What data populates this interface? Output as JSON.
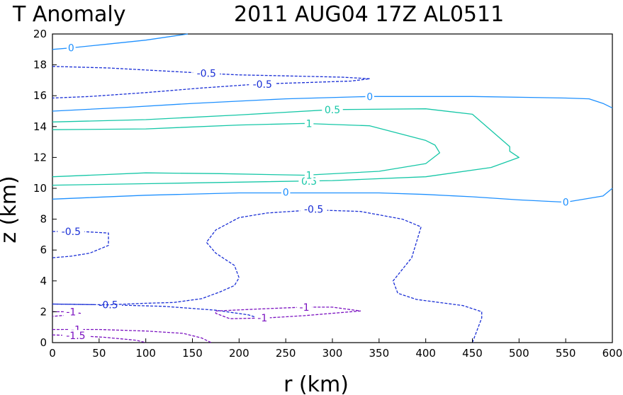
{
  "chart_data": {
    "type": "contour",
    "title_left": "T Anomaly",
    "title_right": "2011 AUG04 17Z   AL0511",
    "xlabel": "r (km)",
    "ylabel": "z (km)",
    "xlim": [
      0,
      600
    ],
    "ylim": [
      0,
      20
    ],
    "xticks": [
      "0",
      "50",
      "100",
      "150",
      "200",
      "250",
      "300",
      "350",
      "400",
      "450",
      "500",
      "550",
      "600"
    ],
    "yticks": [
      "0",
      "2",
      "4",
      "6",
      "8",
      "10",
      "12",
      "14",
      "16",
      "18",
      "20"
    ],
    "colors": {
      "zero": "#1e90ff",
      "positive": "#16c7a7",
      "negative": "#1a2fd6",
      "strong_negative": "#7a10c0"
    },
    "contours": [
      {
        "id": "zero-top",
        "level": "0",
        "style": "zero",
        "dashed": false,
        "points": [
          [
            0,
            19
          ],
          [
            20,
            19.1
          ],
          [
            60,
            19.35
          ],
          [
            100,
            19.6
          ],
          [
            145,
            20
          ]
        ],
        "labels": [
          {
            "text": "0",
            "at": [
              20,
              19.1
            ]
          }
        ]
      },
      {
        "id": "neg05-top",
        "level": "-0.5",
        "style": "negative",
        "dashed": true,
        "points": [
          [
            0,
            17.9
          ],
          [
            60,
            17.8
          ],
          [
            120,
            17.6
          ],
          [
            165,
            17.45
          ],
          [
            200,
            17.35
          ],
          [
            240,
            17.3
          ],
          [
            310,
            17.2
          ],
          [
            340,
            17.1
          ],
          [
            320,
            16.95
          ],
          [
            270,
            16.85
          ],
          [
            220,
            16.75
          ],
          [
            160,
            16.5
          ],
          [
            100,
            16.2
          ],
          [
            40,
            15.95
          ],
          [
            0,
            15.85
          ]
        ],
        "labels": [
          {
            "text": "-0.5",
            "at": [
              165,
              17.45
            ]
          },
          {
            "text": "-0.5",
            "at": [
              225,
              16.75
            ]
          }
        ]
      },
      {
        "id": "zero-upper",
        "level": "0",
        "style": "zero",
        "dashed": false,
        "points": [
          [
            0,
            15
          ],
          [
            80,
            15.25
          ],
          [
            150,
            15.5
          ],
          [
            250,
            15.8
          ],
          [
            340,
            15.95
          ],
          [
            450,
            15.95
          ],
          [
            550,
            15.85
          ],
          [
            575,
            15.8
          ],
          [
            590,
            15.5
          ],
          [
            600,
            15.2
          ]
        ],
        "labels": [
          {
            "text": "0",
            "at": [
              340,
              15.95
            ]
          }
        ]
      },
      {
        "id": "pos05-upper",
        "level": "0.5",
        "style": "positive",
        "dashed": false,
        "points": [
          [
            0,
            14.3
          ],
          [
            100,
            14.45
          ],
          [
            200,
            14.75
          ],
          [
            300,
            15.1
          ],
          [
            400,
            15.15
          ],
          [
            450,
            14.8
          ],
          [
            490,
            12.7
          ],
          [
            490,
            12.4
          ],
          [
            500,
            12
          ],
          [
            470,
            11.35
          ],
          [
            400,
            10.75
          ],
          [
            300,
            10.5
          ],
          [
            200,
            10.4
          ],
          [
            100,
            10.3
          ],
          [
            0,
            10.2
          ]
        ],
        "labels": [
          {
            "text": "0.5",
            "at": [
              300,
              15.1
            ]
          },
          {
            "text": "0.5",
            "at": [
              275,
              10.45
            ]
          }
        ]
      },
      {
        "id": "pos1-upper",
        "level": "1",
        "style": "positive",
        "dashed": false,
        "points": [
          [
            0,
            13.8
          ],
          [
            100,
            13.85
          ],
          [
            200,
            14.1
          ],
          [
            270,
            14.2
          ],
          [
            340,
            14.05
          ],
          [
            400,
            13.1
          ],
          [
            410,
            12.8
          ],
          [
            415,
            12.3
          ],
          [
            400,
            11.6
          ],
          [
            350,
            11.1
          ],
          [
            270,
            10.85
          ],
          [
            180,
            10.95
          ],
          [
            100,
            11
          ],
          [
            0,
            10.75
          ]
        ],
        "labels": [
          {
            "text": "1",
            "at": [
              275,
              14.2
            ]
          },
          {
            "text": "1",
            "at": [
              275,
              10.85
            ]
          }
        ]
      },
      {
        "id": "zero-mid",
        "level": "0",
        "style": "zero",
        "dashed": false,
        "points": [
          [
            0,
            9.3
          ],
          [
            100,
            9.55
          ],
          [
            200,
            9.7
          ],
          [
            300,
            9.7
          ],
          [
            350,
            9.7
          ],
          [
            400,
            9.6
          ],
          [
            450,
            9.45
          ],
          [
            500,
            9.25
          ],
          [
            550,
            9.1
          ],
          [
            590,
            9.5
          ],
          [
            600,
            10
          ]
        ],
        "labels": [
          {
            "text": "0",
            "at": [
              250,
              9.75
            ]
          },
          {
            "text": "0",
            "at": [
              550,
              9.1
            ]
          }
        ]
      },
      {
        "id": "neg05-mid",
        "level": "-0.5",
        "style": "negative",
        "dashed": true,
        "points": [
          [
            0,
            2.5
          ],
          [
            60,
            2.45
          ],
          [
            120,
            2.35
          ],
          [
            175,
            2.1
          ],
          [
            210,
            1.8
          ],
          [
            225,
            1.5
          ]
        ],
        "labels": [
          {
            "text": "-0.5",
            "at": [
              60,
              2.45
            ]
          }
        ]
      },
      {
        "id": "neg05-big",
        "level": "-0.5",
        "style": "negative",
        "dashed": true,
        "points": [
          [
            450,
            0
          ],
          [
            455,
            0.8
          ],
          [
            460,
            1.6
          ],
          [
            460,
            2.0
          ],
          [
            440,
            2.4
          ],
          [
            390,
            2.8
          ],
          [
            370,
            3.2
          ],
          [
            365,
            4
          ],
          [
            385,
            5.5
          ],
          [
            395,
            7.5
          ],
          [
            375,
            8
          ],
          [
            330,
            8.5
          ],
          [
            280,
            8.6
          ],
          [
            230,
            8.4
          ],
          [
            200,
            8.1
          ],
          [
            175,
            7.3
          ],
          [
            165,
            6.5
          ],
          [
            175,
            5.8
          ],
          [
            195,
            5
          ],
          [
            200,
            4.2
          ],
          [
            195,
            3.7
          ],
          [
            180,
            3.3
          ],
          [
            160,
            2.85
          ],
          [
            130,
            2.6
          ],
          [
            100,
            2.55
          ],
          [
            60,
            2.45
          ],
          [
            0,
            2.5
          ]
        ],
        "labels": [
          {
            "text": "-0.5",
            "at": [
              280,
              8.65
            ]
          }
        ]
      },
      {
        "id": "neg05-left",
        "level": "-0.5",
        "style": "negative",
        "dashed": true,
        "points": [
          [
            0,
            7.2
          ],
          [
            30,
            7.2
          ],
          [
            60,
            7.1
          ],
          [
            60,
            6.3
          ],
          [
            40,
            5.8
          ],
          [
            20,
            5.6
          ],
          [
            0,
            5.5
          ]
        ],
        "labels": [
          {
            "text": "-0.5",
            "at": [
              20,
              7.2
            ]
          }
        ]
      },
      {
        "id": "neg1-blob",
        "level": "-1",
        "style": "strong_negative",
        "dashed": true,
        "points": [
          [
            175,
            2.05
          ],
          [
            230,
            2.2
          ],
          [
            270,
            2.3
          ],
          [
            300,
            2.3
          ],
          [
            330,
            2.05
          ],
          [
            300,
            1.9
          ],
          [
            270,
            1.75
          ],
          [
            230,
            1.6
          ],
          [
            190,
            1.55
          ],
          [
            175,
            1.9
          ],
          [
            175,
            2.05
          ]
        ],
        "labels": [
          {
            "text": "-1",
            "at": [
              270,
              2.3
            ]
          },
          {
            "text": "-1",
            "at": [
              225,
              1.6
            ]
          }
        ]
      },
      {
        "id": "neg1-left",
        "level": "-1",
        "style": "strong_negative",
        "dashed": true,
        "points": [
          [
            0,
            2.0
          ],
          [
            20,
            2.0
          ],
          [
            30,
            1.9
          ],
          [
            20,
            1.8
          ],
          [
            0,
            1.7
          ]
        ],
        "labels": [
          {
            "text": "-1",
            "at": [
              20,
              2.0
            ]
          }
        ]
      },
      {
        "id": "neg1-bottom",
        "level": "-1",
        "style": "strong_negative",
        "dashed": true,
        "points": [
          [
            0,
            0.85
          ],
          [
            50,
            0.85
          ],
          [
            100,
            0.75
          ],
          [
            140,
            0.6
          ],
          [
            160,
            0.3
          ],
          [
            170,
            0
          ]
        ],
        "labels": [
          {
            "text": "-1",
            "at": [
              25,
              0.85
            ]
          }
        ]
      },
      {
        "id": "neg15-bottom",
        "level": "-1.5",
        "style": "strong_negative",
        "dashed": true,
        "points": [
          [
            0,
            0.5
          ],
          [
            25,
            0.45
          ],
          [
            55,
            0.35
          ],
          [
            90,
            0.15
          ],
          [
            100,
            0
          ]
        ],
        "labels": [
          {
            "text": "-1.5",
            "at": [
              25,
              0.45
            ]
          }
        ]
      }
    ]
  }
}
